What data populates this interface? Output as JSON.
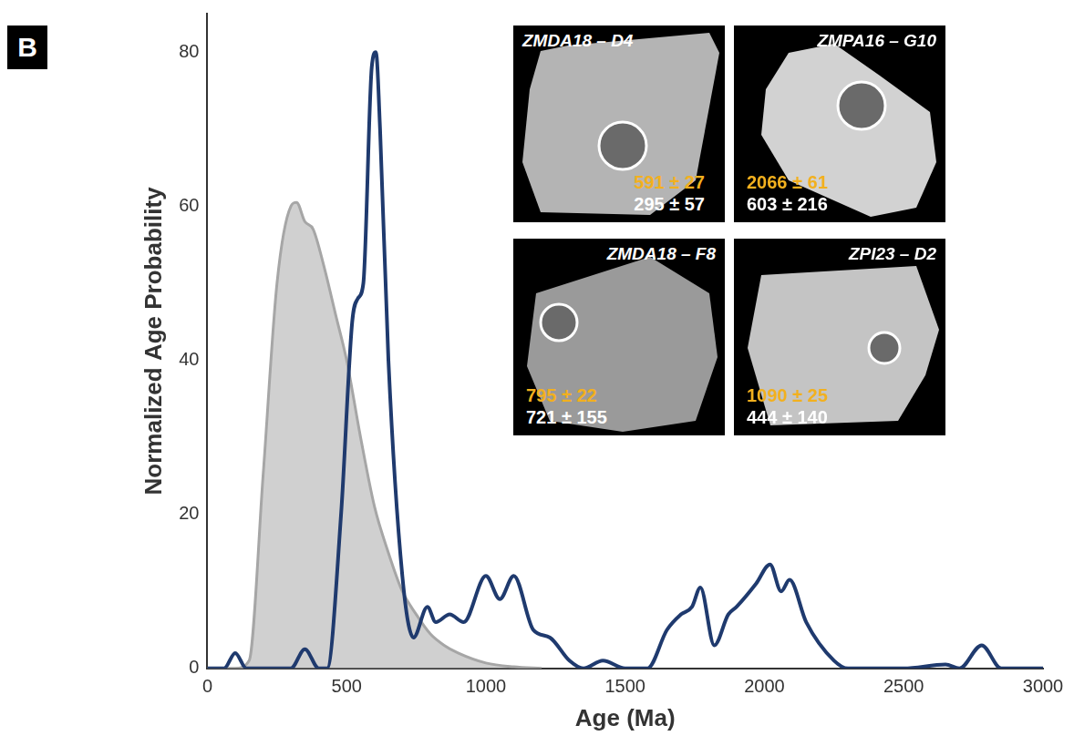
{
  "chart_data": {
    "type": "line",
    "panel": "B",
    "x_label": "Age (Ma)",
    "y_label": "Normalized Age Probability",
    "xlim": [
      0,
      3000
    ],
    "xticks": [
      0,
      500,
      1000,
      1500,
      2000,
      2500,
      3000
    ],
    "ylim": [
      0,
      85
    ],
    "yticks": [
      0,
      20,
      40,
      60,
      80
    ],
    "grid": false,
    "series": [
      {
        "type": "area",
        "color": "#a6a6a6",
        "x": [
          0,
          100,
          150,
          200,
          250,
          300,
          320,
          350,
          380,
          420,
          460,
          500,
          550,
          600,
          650,
          700,
          750,
          800,
          850,
          900,
          1000,
          1100,
          1200
        ],
        "values": [
          0,
          0,
          1,
          25,
          50,
          60,
          60.5,
          58,
          57,
          52,
          46,
          40,
          30,
          21,
          15,
          10,
          7,
          4.5,
          3,
          2,
          0.7,
          0.2,
          0
        ]
      },
      {
        "type": "line",
        "color": "#1f3a6e",
        "x": [
          0,
          60,
          100,
          140,
          180,
          300,
          350,
          400,
          430,
          480,
          520,
          540,
          560,
          590,
          605,
          620,
          650,
          700,
          740,
          790,
          820,
          870,
          920,
          1000,
          1050,
          1100,
          1170,
          1230,
          1300,
          1350,
          1420,
          1500,
          1580,
          1650,
          1700,
          1740,
          1770,
          1820,
          1870,
          1900,
          1970,
          2020,
          2060,
          2090,
          2150,
          2250,
          2300,
          2500,
          2650,
          2700,
          2780,
          2850,
          3000
        ],
        "values": [
          0,
          0,
          2,
          0,
          0,
          0,
          2.5,
          0,
          0,
          20,
          45,
          48,
          50,
          78,
          80,
          70,
          40,
          12,
          4,
          8,
          6,
          7,
          6,
          12,
          9,
          12,
          5,
          4,
          1,
          0,
          1,
          0,
          0,
          5,
          7,
          8,
          10.5,
          3,
          7,
          8,
          11,
          13.5,
          10,
          11.5,
          6,
          1,
          0,
          0,
          0.5,
          0,
          3,
          0,
          0
        ]
      }
    ],
    "insets": [
      {
        "label": "ZMDA18 – D4",
        "age_yellow": "591 ± 27",
        "age_white": "295 ± 57"
      },
      {
        "label": "ZMPA16 – G10",
        "age_yellow": "2066 ± 61",
        "age_white": "603 ± 216"
      },
      {
        "label": "ZMDA18 – F8",
        "age_yellow": "795 ± 22",
        "age_white": "721 ± 155"
      },
      {
        "label": "ZPI23 – D2",
        "age_yellow": "1090 ± 25",
        "age_white": "444 ± 140"
      }
    ]
  }
}
